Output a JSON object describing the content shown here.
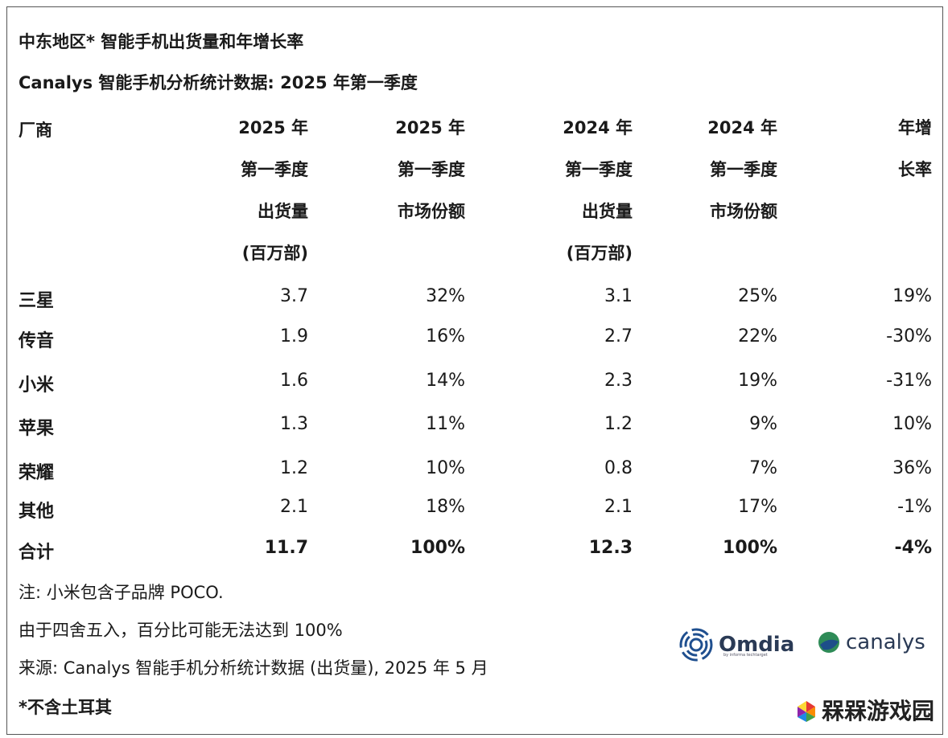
{
  "title": "中东地区* 智能手机出货量和年增长率",
  "subtitle": "Canalys 智能手机分析统计数据: 2025 年第一季度",
  "header": {
    "vendor": "厂商",
    "columns": [
      {
        "lines": [
          "2025 年",
          "第一季度",
          "出货量",
          "(百万部)"
        ]
      },
      {
        "lines": [
          "2025 年",
          "第一季度",
          "市场份额"
        ]
      },
      {
        "lines": [
          "2024 年",
          "第一季度",
          "出货量",
          "(百万部)"
        ]
      },
      {
        "lines": [
          "2024 年",
          "第一季度",
          "市场份额"
        ]
      },
      {
        "lines": [
          "年增",
          "长率"
        ]
      }
    ]
  },
  "rows": [
    {
      "vendor": "三星",
      "values": [
        "3.7",
        "32%",
        "3.1",
        "25%",
        "19%"
      ]
    },
    {
      "vendor": "传音",
      "values": [
        "1.9",
        "16%",
        "2.7",
        "22%",
        "-30%"
      ]
    },
    {
      "vendor": "小米",
      "values": [
        "1.6",
        "14%",
        "2.3",
        "19%",
        "-31%"
      ]
    },
    {
      "vendor": "苹果",
      "values": [
        "1.3",
        "11%",
        "1.2",
        "9%",
        "10%"
      ]
    },
    {
      "vendor": "荣耀",
      "values": [
        "1.2",
        "10%",
        "0.8",
        "7%",
        "36%"
      ]
    },
    {
      "vendor": "其他",
      "values": [
        "2.1",
        "18%",
        "2.1",
        "17%",
        "-1%"
      ]
    }
  ],
  "total": {
    "vendor": "合计",
    "values": [
      "11.7",
      "100%",
      "12.3",
      "100%",
      "-4%"
    ]
  },
  "notes": [
    "注: 小米包含子品牌 POCO.",
    "由于四舍五入，百分比可能无法达到 100%",
    "来源: Canalys 智能手机分析统计数据 (出货量), 2025 年 5 月"
  ],
  "footnote": "*不含土耳其",
  "logos": {
    "omdia": "Omdia",
    "omdia_tag": "by informa techtarget",
    "canalys": "canalys",
    "watermark": "槑槑游戏园"
  },
  "colors": {
    "omdia_blue": "#1f4f8f",
    "canalys_green": "#2e8b57",
    "canalys_blue": "#1d4e89"
  }
}
